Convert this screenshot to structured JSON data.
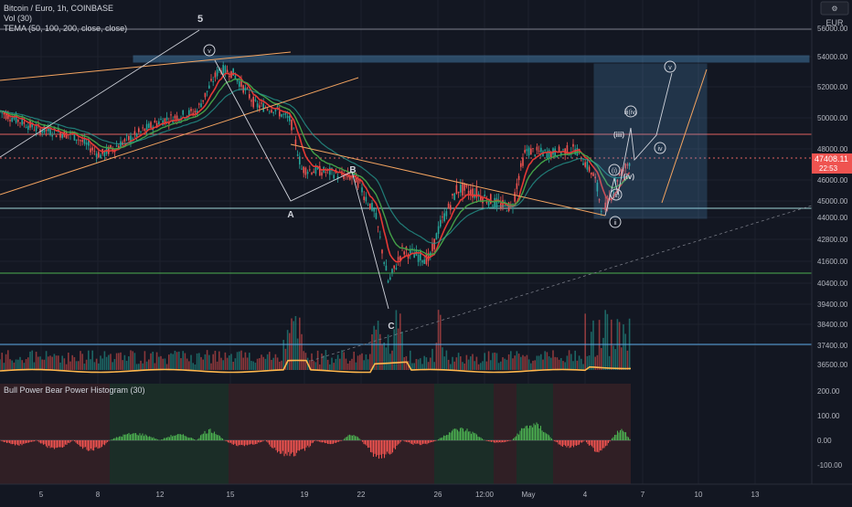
{
  "header": {
    "title": "Bitcoin / Euro, 1h, COINBASE",
    "vol": "Vol (30)",
    "tema": "TEMA (50, 100, 200, close, close)"
  },
  "currency": "EUR",
  "price_axis": [
    "56000.00",
    "54000.00",
    "52000.00",
    "50000.00",
    "48000.00",
    "46000.00",
    "45000.00",
    "44000.00",
    "42800.00",
    "41600.00",
    "40400.00",
    "39400.00",
    "38400.00",
    "37400.00",
    "36500.00"
  ],
  "price_badge": {
    "price": "47408.11",
    "countdown": "22:53"
  },
  "osc_axis": [
    "200.00",
    "100.00",
    "0.00",
    "-100.00"
  ],
  "osc_title": "Bull Power Bear Power Histogram (30)",
  "time_axis": [
    "5",
    "8",
    "12",
    "15",
    "19",
    "22",
    "26",
    "12:00",
    "May",
    "4",
    "7",
    "10",
    "13"
  ],
  "wave_labels": {
    "five": "5",
    "v_top": "v",
    "a": "A",
    "b": "B",
    "c": "C",
    "ii": "ii",
    "i": "i",
    "iii": "(iii)",
    "iv": "(iv)",
    "iv_small": "iv",
    "v_small": "v",
    "i_paren": "(i)",
    "ii_paren": "(ii)",
    "iv_circle": "(iv)",
    "iii_circle": "iii(iv)"
  },
  "colors": {
    "bg": "#131722",
    "grid": "#1e222d",
    "up": "#26a69a",
    "down": "#ef5350",
    "tema50": "#e53935",
    "tema100": "#43a047",
    "tema200": "#26a69a",
    "volma": "#ffb74d",
    "hist_up": "#4caf50",
    "hist_down": "#ef5350",
    "channel": "#f4a460",
    "box": "#5aa9e6",
    "white": "#d1d4dc"
  },
  "chart_data": {
    "type": "candlestick",
    "title": "Bitcoin / Euro, 1h, COINBASE",
    "x_ticks": [
      "5",
      "8",
      "12",
      "15",
      "19",
      "22",
      "26",
      "12:00",
      "May",
      "4",
      "7",
      "10",
      "13"
    ],
    "y_range": [
      36000,
      57000
    ],
    "indicators": [
      "Vol (30)",
      "TEMA (50, 100, 200, close, close)",
      "Bull Power Bear Power Histogram (30)"
    ],
    "last_price": 47408.11,
    "horizontal_levels": [
      54000,
      48900,
      44900,
      41100,
      37400
    ],
    "grid": true,
    "legend": "top-left"
  }
}
